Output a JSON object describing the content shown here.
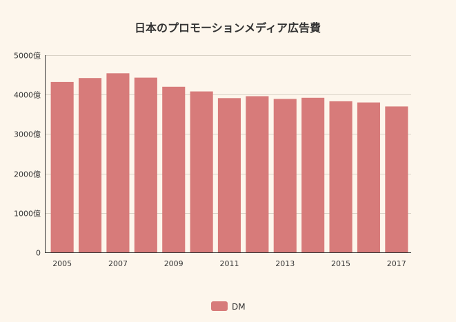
{
  "chart_data": {
    "type": "bar",
    "title": "日本のプロモーションメディア広告費",
    "categories": [
      "2005",
      "2006",
      "2007",
      "2008",
      "2009",
      "2010",
      "2011",
      "2012",
      "2013",
      "2014",
      "2015",
      "2016",
      "2017"
    ],
    "x_tick_labels": [
      "2005",
      "2007",
      "2009",
      "2011",
      "2013",
      "2015",
      "2017"
    ],
    "y_tick_labels": [
      "0",
      "1000億",
      "2000億",
      "3000億",
      "4000億",
      "5000億"
    ],
    "series": [
      {
        "name": "DM",
        "color": "#d77b7a",
        "values": [
          4320,
          4420,
          4540,
          4430,
          4200,
          4080,
          3910,
          3960,
          3890,
          3920,
          3830,
          3800,
          3700
        ]
      }
    ],
    "ylim": [
      0,
      5000
    ],
    "y_ticks": [
      0,
      1000,
      2000,
      3000,
      4000,
      5000
    ],
    "grid": true,
    "legend_position": "bottom-center"
  }
}
